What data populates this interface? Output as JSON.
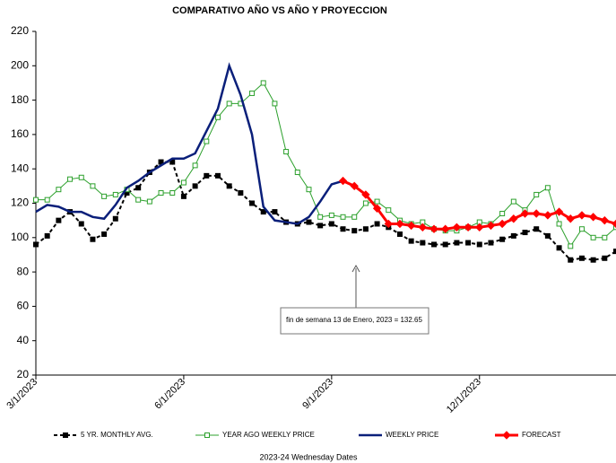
{
  "chart_data": {
    "type": "line",
    "title": "COMPARATIVO AÑO VS  AÑO Y PROYECCION",
    "x_label": "2023-24 Wednesday  Dates",
    "categories": [
      "3/1/2023",
      null,
      null,
      null,
      null,
      null,
      null,
      null,
      null,
      null,
      null,
      null,
      null,
      "6/1/2023",
      null,
      null,
      null,
      null,
      null,
      null,
      null,
      null,
      null,
      null,
      null,
      null,
      "9/1/2023",
      null,
      null,
      null,
      null,
      null,
      null,
      null,
      null,
      null,
      null,
      null,
      null,
      "12/1/2023",
      null,
      null,
      null,
      null,
      null,
      null,
      null,
      null,
      null,
      null,
      null,
      null
    ],
    "series": [
      {
        "name": "5 YR. MONTHLY AVG.",
        "color": "#000000",
        "values": [
          96,
          101,
          110,
          115,
          108,
          99,
          102,
          111,
          126,
          129,
          138,
          144,
          144,
          124,
          130,
          136,
          136,
          130,
          126,
          120,
          115,
          115,
          109,
          108,
          109,
          107,
          108,
          105,
          104,
          105,
          108,
          106,
          102,
          98,
          97,
          96,
          96,
          97,
          97,
          96,
          97,
          99,
          101,
          103,
          105,
          101,
          94,
          87,
          88,
          87,
          88,
          92
        ]
      },
      {
        "name": "YEAR AGO WEEKLY PRICE",
        "color": "#2ca02c",
        "values": [
          122,
          122,
          128,
          134,
          135,
          130,
          124,
          125,
          128,
          122,
          121,
          126,
          126,
          132,
          142,
          156,
          170,
          178,
          178,
          184,
          190,
          178,
          150,
          138,
          128,
          112,
          113,
          112,
          112,
          120,
          121,
          116,
          110,
          108,
          109,
          105,
          104,
          104,
          106,
          109,
          108,
          114,
          121,
          116,
          125,
          129,
          108,
          95,
          105,
          100,
          100,
          106
        ]
      },
      {
        "name": "WEEKLY PRICE",
        "color": "#0a1f7a",
        "values": [
          115,
          119,
          118,
          115,
          115,
          112,
          111,
          119,
          129,
          133,
          138,
          142,
          146,
          146,
          149,
          162,
          175,
          200,
          183,
          160,
          118,
          110,
          109,
          108,
          112,
          121,
          131,
          133,
          null,
          null,
          null,
          null,
          null,
          null,
          null,
          null,
          null,
          null,
          null,
          null,
          null,
          null,
          null,
          null,
          null,
          null,
          null,
          null,
          null,
          null,
          null,
          null
        ]
      },
      {
        "name": "FORECAST",
        "color": "#ff0000",
        "values": [
          null,
          null,
          null,
          null,
          null,
          null,
          null,
          null,
          null,
          null,
          null,
          null,
          null,
          null,
          null,
          null,
          null,
          null,
          null,
          null,
          null,
          null,
          null,
          null,
          null,
          null,
          null,
          133,
          130,
          125,
          117,
          108,
          108,
          107,
          106,
          105,
          105,
          106,
          106,
          106,
          107,
          108,
          111,
          114,
          114,
          113,
          115,
          111,
          113,
          112,
          110,
          108
        ]
      }
    ],
    "annotation": "fin de semana 13 de Enero, 2023  = 132.65",
    "ylim": [
      20,
      220
    ],
    "yticks": [
      20,
      40,
      60,
      80,
      100,
      120,
      140,
      160,
      180,
      200,
      220
    ],
    "grid": false
  }
}
